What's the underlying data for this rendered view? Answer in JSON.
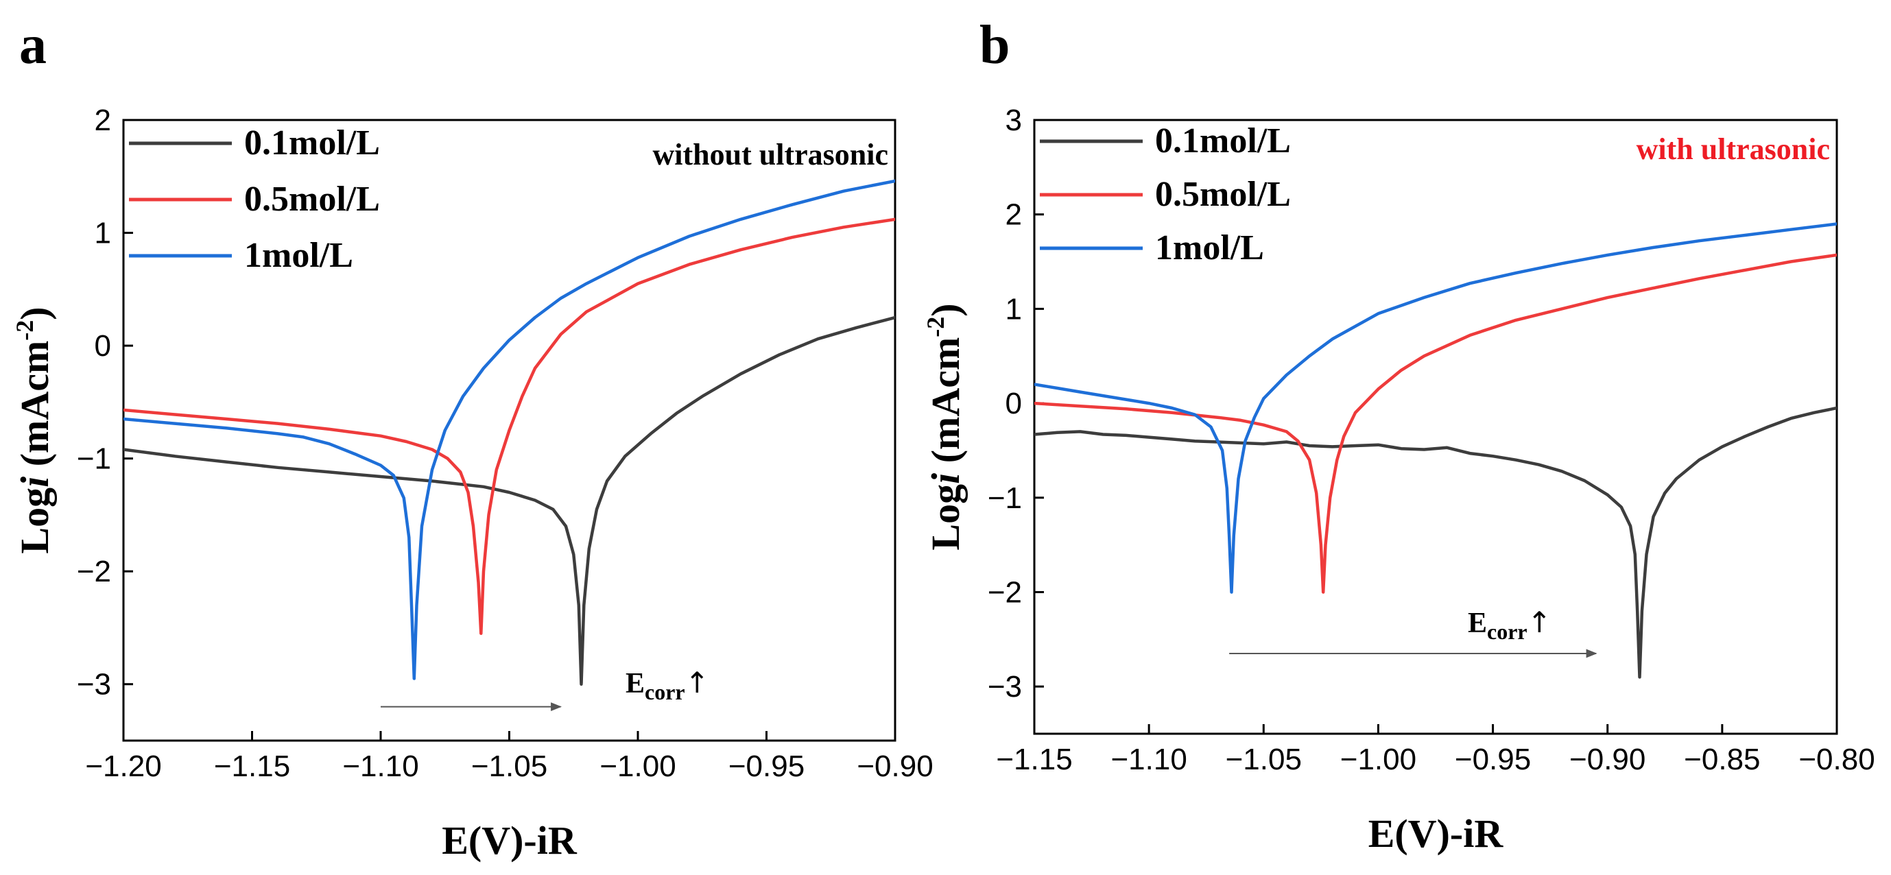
{
  "panels": [
    {
      "letter": "a",
      "annotation": "without ultrasonic",
      "annotation_color": "#000000",
      "ecorr_label_main": "E",
      "ecorr_label_sub": "corr",
      "ecorr_arrow_glyph": "↑",
      "ecorr_arrow_from": -1.1,
      "ecorr_arrow_to": -1.03,
      "ecorr_arrow_y": -3.2
    },
    {
      "letter": "b",
      "annotation": "with ultrasonic",
      "annotation_color": "#ee1c25",
      "ecorr_label_main": "E",
      "ecorr_label_sub": "corr",
      "ecorr_arrow_glyph": "↑",
      "ecorr_arrow_from": -1.065,
      "ecorr_arrow_to": -0.905,
      "ecorr_arrow_y": -2.65
    }
  ],
  "chart_data": [
    {
      "type": "line",
      "xlabel": "E(V)-iR",
      "ylabel_parts": [
        "Log",
        "i",
        " (mAcm",
        "-2",
        ")"
      ],
      "xlim": [
        -1.2,
        -0.9
      ],
      "ylim": [
        -3.5,
        2
      ],
      "xticks": [
        -1.2,
        -1.15,
        -1.1,
        -1.05,
        -1.0,
        -0.95,
        -0.9
      ],
      "xtick_labels": [
        "−1.20",
        "−1.15",
        "−1.10",
        "−1.05",
        "−1.00",
        "−0.95",
        "−0.90"
      ],
      "yticks": [
        -3,
        -2,
        -1,
        0,
        1,
        2
      ],
      "ytick_labels": [
        "−3",
        "−2",
        "−1",
        "0",
        "1",
        "2"
      ],
      "legend_placement": "top-left",
      "series": [
        {
          "name": "0.1mol/L",
          "color": "#3d3d3d",
          "points": [
            [
              -1.2,
              -0.92
            ],
            [
              -1.18,
              -0.98
            ],
            [
              -1.16,
              -1.03
            ],
            [
              -1.14,
              -1.08
            ],
            [
              -1.12,
              -1.12
            ],
            [
              -1.1,
              -1.16
            ],
            [
              -1.08,
              -1.2
            ],
            [
              -1.06,
              -1.25
            ],
            [
              -1.05,
              -1.3
            ],
            [
              -1.04,
              -1.37
            ],
            [
              -1.033,
              -1.45
            ],
            [
              -1.028,
              -1.6
            ],
            [
              -1.025,
              -1.85
            ],
            [
              -1.023,
              -2.3
            ],
            [
              -1.022,
              -3.0
            ],
            [
              -1.021,
              -2.3
            ],
            [
              -1.019,
              -1.8
            ],
            [
              -1.016,
              -1.45
            ],
            [
              -1.012,
              -1.2
            ],
            [
              -1.005,
              -0.98
            ],
            [
              -0.995,
              -0.78
            ],
            [
              -0.985,
              -0.6
            ],
            [
              -0.975,
              -0.45
            ],
            [
              -0.96,
              -0.25
            ],
            [
              -0.945,
              -0.08
            ],
            [
              -0.93,
              0.06
            ],
            [
              -0.915,
              0.16
            ],
            [
              -0.9,
              0.25
            ]
          ]
        },
        {
          "name": "0.5mol/L",
          "color": "#ee3b3b",
          "points": [
            [
              -1.2,
              -0.57
            ],
            [
              -1.18,
              -0.61
            ],
            [
              -1.16,
              -0.65
            ],
            [
              -1.14,
              -0.69
            ],
            [
              -1.12,
              -0.74
            ],
            [
              -1.1,
              -0.8
            ],
            [
              -1.09,
              -0.85
            ],
            [
              -1.08,
              -0.92
            ],
            [
              -1.074,
              -1.0
            ],
            [
              -1.069,
              -1.12
            ],
            [
              -1.066,
              -1.3
            ],
            [
              -1.064,
              -1.6
            ],
            [
              -1.062,
              -2.1
            ],
            [
              -1.061,
              -2.55
            ],
            [
              -1.06,
              -2.0
            ],
            [
              -1.058,
              -1.5
            ],
            [
              -1.055,
              -1.1
            ],
            [
              -1.05,
              -0.75
            ],
            [
              -1.045,
              -0.45
            ],
            [
              -1.04,
              -0.2
            ],
            [
              -1.03,
              0.1
            ],
            [
              -1.02,
              0.3
            ],
            [
              -1.0,
              0.55
            ],
            [
              -0.98,
              0.72
            ],
            [
              -0.96,
              0.85
            ],
            [
              -0.94,
              0.96
            ],
            [
              -0.92,
              1.05
            ],
            [
              -0.9,
              1.12
            ]
          ]
        },
        {
          "name": "1mol/L",
          "color": "#1e6fd8",
          "points": [
            [
              -1.2,
              -0.65
            ],
            [
              -1.18,
              -0.69
            ],
            [
              -1.16,
              -0.73
            ],
            [
              -1.14,
              -0.78
            ],
            [
              -1.13,
              -0.81
            ],
            [
              -1.12,
              -0.87
            ],
            [
              -1.11,
              -0.96
            ],
            [
              -1.1,
              -1.06
            ],
            [
              -1.095,
              -1.15
            ],
            [
              -1.091,
              -1.35
            ],
            [
              -1.089,
              -1.7
            ],
            [
              -1.088,
              -2.3
            ],
            [
              -1.087,
              -2.95
            ],
            [
              -1.086,
              -2.3
            ],
            [
              -1.084,
              -1.6
            ],
            [
              -1.08,
              -1.1
            ],
            [
              -1.075,
              -0.75
            ],
            [
              -1.068,
              -0.45
            ],
            [
              -1.06,
              -0.2
            ],
            [
              -1.05,
              0.05
            ],
            [
              -1.04,
              0.25
            ],
            [
              -1.03,
              0.42
            ],
            [
              -1.02,
              0.55
            ],
            [
              -1.0,
              0.78
            ],
            [
              -0.98,
              0.97
            ],
            [
              -0.96,
              1.12
            ],
            [
              -0.94,
              1.25
            ],
            [
              -0.92,
              1.37
            ],
            [
              -0.9,
              1.46
            ]
          ]
        }
      ]
    },
    {
      "type": "line",
      "xlabel": "E(V)-iR",
      "ylabel_parts": [
        "Log",
        "i",
        " (mAcm",
        "-2",
        ")"
      ],
      "xlim": [
        -1.15,
        -0.8
      ],
      "ylim": [
        -3.5,
        3
      ],
      "xticks": [
        -1.15,
        -1.1,
        -1.05,
        -1.0,
        -0.95,
        -0.9,
        -0.85,
        -0.8
      ],
      "xtick_labels": [
        "−1.15",
        "−1.10",
        "−1.05",
        "−1.00",
        "−0.95",
        "−0.90",
        "−0.85",
        "−0.80"
      ],
      "yticks": [
        -3,
        -2,
        -1,
        0,
        1,
        2,
        3
      ],
      "ytick_labels": [
        "−3",
        "−2",
        "−1",
        "0",
        "1",
        "2",
        "3"
      ],
      "legend_placement": "top-left",
      "series": [
        {
          "name": "0.1mol/L",
          "color": "#3d3d3d",
          "points": [
            [
              -1.15,
              -0.33
            ],
            [
              -1.14,
              -0.31
            ],
            [
              -1.13,
              -0.3
            ],
            [
              -1.12,
              -0.33
            ],
            [
              -1.11,
              -0.34
            ],
            [
              -1.1,
              -0.36
            ],
            [
              -1.09,
              -0.38
            ],
            [
              -1.08,
              -0.4
            ],
            [
              -1.07,
              -0.41
            ],
            [
              -1.06,
              -0.42
            ],
            [
              -1.05,
              -0.43
            ],
            [
              -1.04,
              -0.41
            ],
            [
              -1.03,
              -0.45
            ],
            [
              -1.02,
              -0.46
            ],
            [
              -1.01,
              -0.45
            ],
            [
              -1.0,
              -0.44
            ],
            [
              -0.99,
              -0.48
            ],
            [
              -0.98,
              -0.49
            ],
            [
              -0.97,
              -0.47
            ],
            [
              -0.96,
              -0.53
            ],
            [
              -0.95,
              -0.56
            ],
            [
              -0.94,
              -0.6
            ],
            [
              -0.93,
              -0.65
            ],
            [
              -0.92,
              -0.72
            ],
            [
              -0.91,
              -0.82
            ],
            [
              -0.9,
              -0.97
            ],
            [
              -0.894,
              -1.1
            ],
            [
              -0.89,
              -1.3
            ],
            [
              -0.888,
              -1.6
            ],
            [
              -0.887,
              -2.2
            ],
            [
              -0.886,
              -2.9
            ],
            [
              -0.885,
              -2.2
            ],
            [
              -0.883,
              -1.6
            ],
            [
              -0.88,
              -1.2
            ],
            [
              -0.875,
              -0.95
            ],
            [
              -0.87,
              -0.8
            ],
            [
              -0.86,
              -0.6
            ],
            [
              -0.85,
              -0.46
            ],
            [
              -0.84,
              -0.35
            ],
            [
              -0.83,
              -0.25
            ],
            [
              -0.82,
              -0.16
            ],
            [
              -0.81,
              -0.1
            ],
            [
              -0.8,
              -0.05
            ]
          ]
        },
        {
          "name": "0.5mol/L",
          "color": "#ee3b3b",
          "points": [
            [
              -1.15,
              0.0
            ],
            [
              -1.13,
              -0.03
            ],
            [
              -1.11,
              -0.06
            ],
            [
              -1.09,
              -0.1
            ],
            [
              -1.07,
              -0.15
            ],
            [
              -1.06,
              -0.18
            ],
            [
              -1.05,
              -0.23
            ],
            [
              -1.04,
              -0.3
            ],
            [
              -1.035,
              -0.4
            ],
            [
              -1.03,
              -0.6
            ],
            [
              -1.027,
              -0.95
            ],
            [
              -1.025,
              -1.5
            ],
            [
              -1.024,
              -2.0
            ],
            [
              -1.023,
              -1.5
            ],
            [
              -1.021,
              -1.0
            ],
            [
              -1.018,
              -0.6
            ],
            [
              -1.015,
              -0.35
            ],
            [
              -1.01,
              -0.1
            ],
            [
              -1.0,
              0.15
            ],
            [
              -0.99,
              0.35
            ],
            [
              -0.98,
              0.5
            ],
            [
              -0.96,
              0.72
            ],
            [
              -0.94,
              0.88
            ],
            [
              -0.92,
              1.0
            ],
            [
              -0.9,
              1.12
            ],
            [
              -0.88,
              1.22
            ],
            [
              -0.86,
              1.32
            ],
            [
              -0.84,
              1.41
            ],
            [
              -0.82,
              1.5
            ],
            [
              -0.8,
              1.57
            ]
          ]
        },
        {
          "name": "1mol/L",
          "color": "#1e6fd8",
          "points": [
            [
              -1.15,
              0.2
            ],
            [
              -1.14,
              0.16
            ],
            [
              -1.13,
              0.12
            ],
            [
              -1.12,
              0.08
            ],
            [
              -1.11,
              0.04
            ],
            [
              -1.1,
              0.0
            ],
            [
              -1.09,
              -0.05
            ],
            [
              -1.08,
              -0.12
            ],
            [
              -1.073,
              -0.25
            ],
            [
              -1.068,
              -0.5
            ],
            [
              -1.066,
              -0.9
            ],
            [
              -1.065,
              -1.4
            ],
            [
              -1.064,
              -2.0
            ],
            [
              -1.063,
              -1.4
            ],
            [
              -1.061,
              -0.8
            ],
            [
              -1.058,
              -0.4
            ],
            [
              -1.054,
              -0.15
            ],
            [
              -1.05,
              0.05
            ],
            [
              -1.04,
              0.3
            ],
            [
              -1.03,
              0.5
            ],
            [
              -1.02,
              0.68
            ],
            [
              -1.0,
              0.95
            ],
            [
              -0.98,
              1.12
            ],
            [
              -0.96,
              1.27
            ],
            [
              -0.94,
              1.38
            ],
            [
              -0.92,
              1.48
            ],
            [
              -0.9,
              1.57
            ],
            [
              -0.88,
              1.65
            ],
            [
              -0.86,
              1.72
            ],
            [
              -0.84,
              1.78
            ],
            [
              -0.82,
              1.84
            ],
            [
              -0.8,
              1.9
            ]
          ]
        }
      ]
    }
  ]
}
